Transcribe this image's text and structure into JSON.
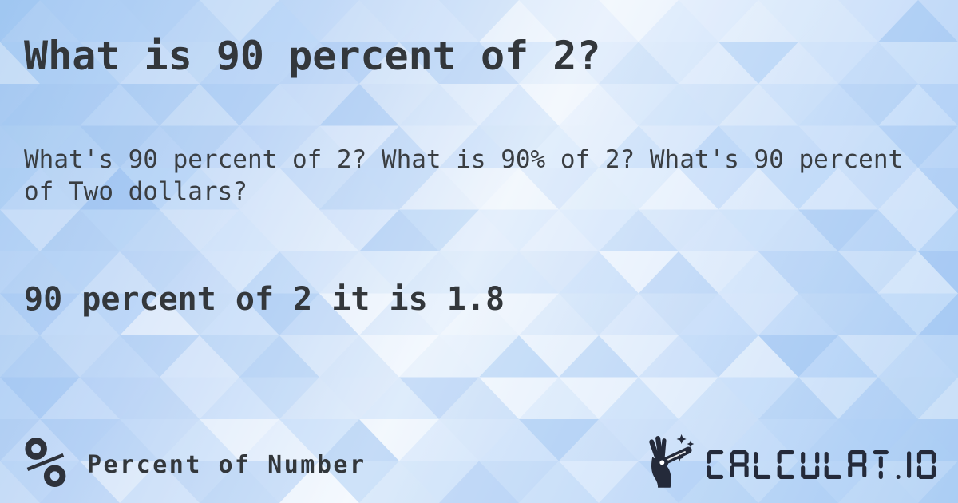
{
  "page": {
    "title": "What is 90 percent of 2?",
    "description": "What's 90 percent of 2? What is 90% of 2? What's 90 percent of Two dollars?",
    "result": "90 percent of 2 it is 1.8"
  },
  "footer": {
    "icon_glyph": "%",
    "icon_name": "percent-icon",
    "category_label": "Percent of Number",
    "brand": "CALCULAT.IO",
    "brand_icon_name": "magic-wand-hand-icon"
  },
  "theme": {
    "text_color": "#33373b",
    "logo_color": "#242a3a",
    "bg_gradient": [
      "#9ec5f0",
      "#c2d9f7",
      "#eef5fd",
      "#cfe2fa",
      "#a8ccf4"
    ],
    "triangle_palette": [
      "#ffffff",
      "#e4effc",
      "#cfe3fa",
      "#b9d6f8",
      "#a5c9f4",
      "#93bdf0"
    ]
  }
}
